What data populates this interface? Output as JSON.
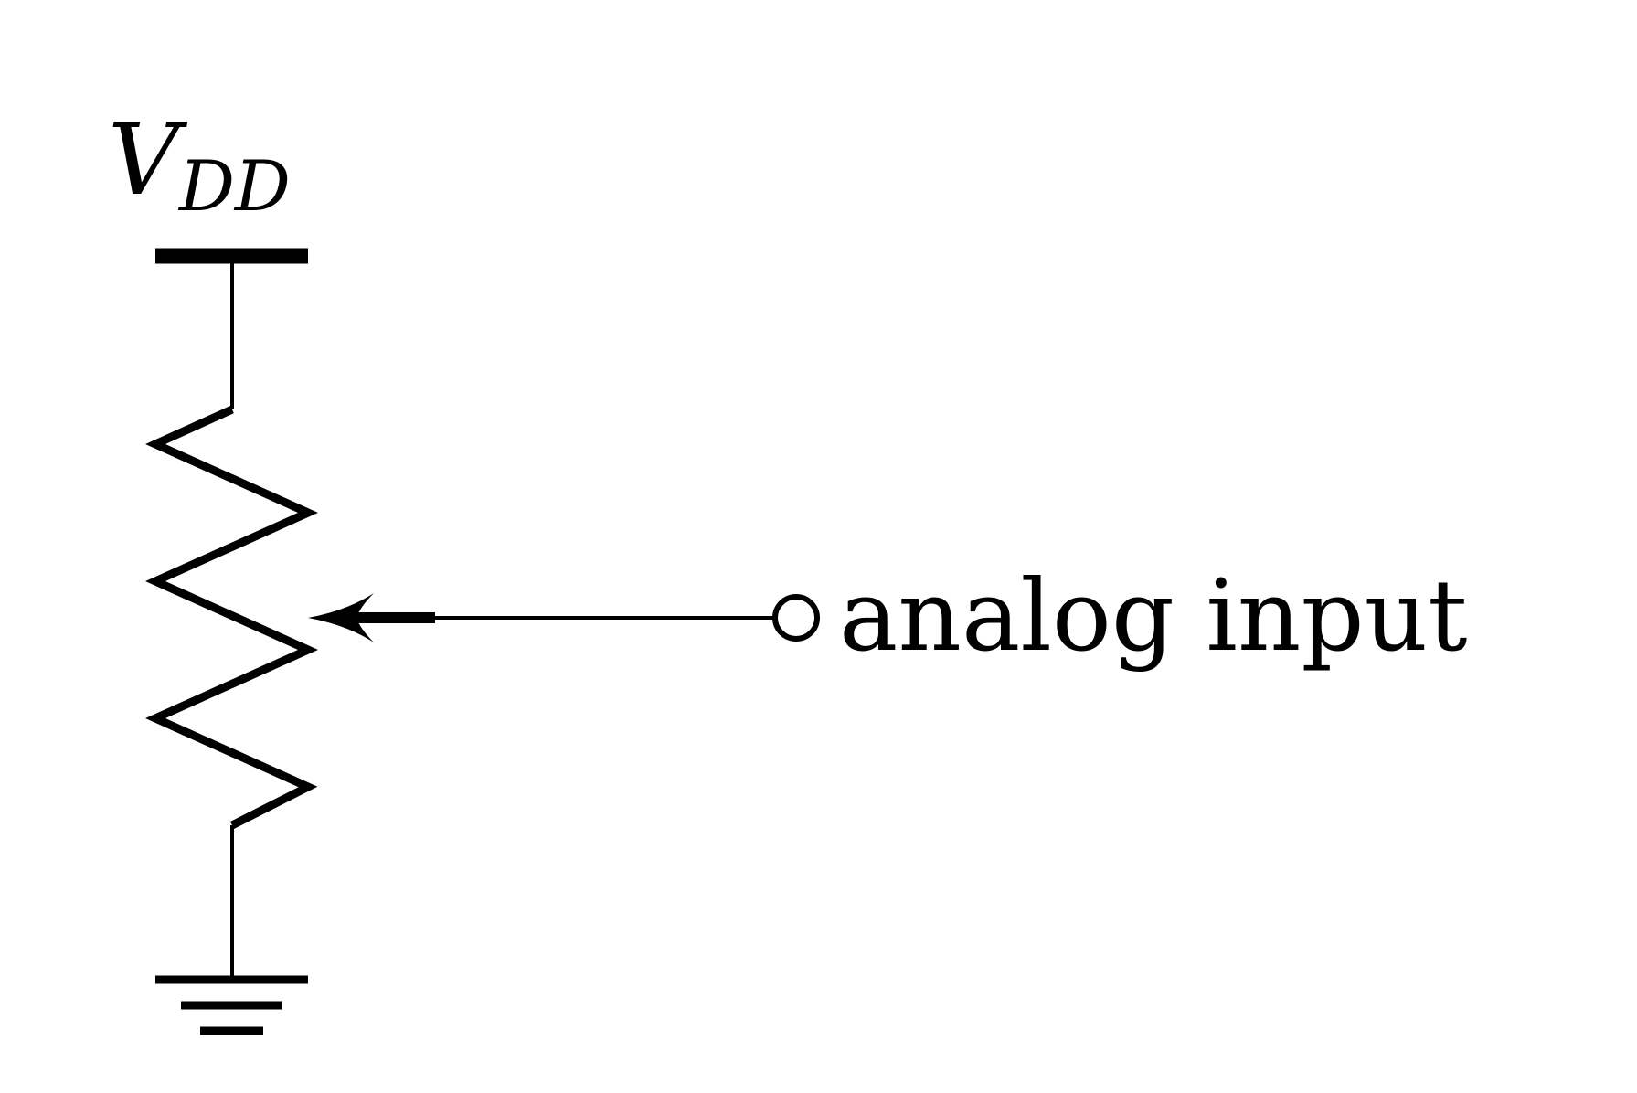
{
  "diagram": {
    "supply_label": {
      "main": "V",
      "subscript": "DD"
    },
    "output_label": "analog input",
    "colors": {
      "stroke": "#000000",
      "background": "#ffffff"
    },
    "icons": {
      "supply": "supply-rail-icon",
      "ground": "ground-icon",
      "potentiometer": "potentiometer-icon",
      "wiper": "wiper-arrow-icon",
      "terminal": "terminal-circle-icon"
    }
  }
}
